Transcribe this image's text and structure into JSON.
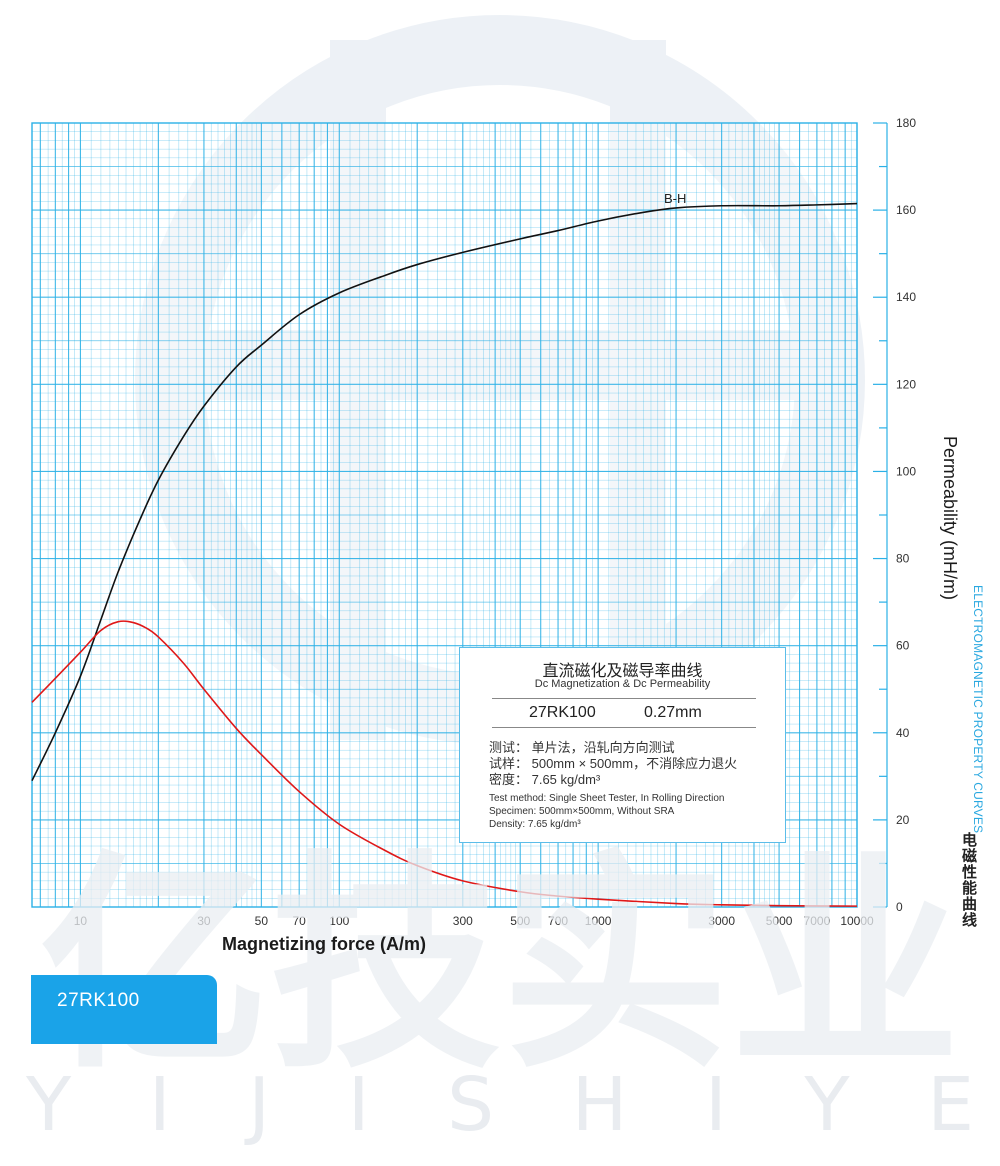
{
  "chart_data": {
    "type": "line",
    "x_scale": "log",
    "xlim": [
      6.5,
      10000
    ],
    "ylim": [
      0,
      180
    ],
    "grid": true,
    "xlabel": "Magnetizing force (A/m)",
    "ylabel": "Permeability (mH/m)",
    "x_ticks": [
      "10",
      "30",
      "50",
      "70",
      "100",
      "300",
      "500",
      "700",
      "1000",
      "3000",
      "5000",
      "7000",
      "10000"
    ],
    "y_ticks": [
      "0",
      "20",
      "40",
      "60",
      "80",
      "100",
      "120",
      "140",
      "160",
      "180"
    ],
    "series": [
      {
        "name": "B-H",
        "color": "#111111",
        "x": [
          6.5,
          8,
          10,
          12,
          14,
          17,
          20,
          25,
          30,
          40,
          50,
          70,
          100,
          150,
          200,
          300,
          500,
          700,
          1000,
          1500,
          2000,
          3000,
          5000,
          7000,
          10000
        ],
        "y": [
          29,
          40,
          53,
          66,
          77,
          89,
          98,
          108,
          115,
          124,
          129,
          136,
          141,
          145,
          147.5,
          150.3,
          153.4,
          155.3,
          157.5,
          159.5,
          160.5,
          161,
          161,
          161.2,
          161.5
        ]
      },
      {
        "name": "",
        "color": "#e01818",
        "x": [
          6.5,
          8,
          10,
          12,
          14,
          16,
          18,
          20,
          25,
          30,
          40,
          50,
          70,
          100,
          150,
          200,
          300,
          500,
          700,
          1000,
          2000,
          3000,
          5000,
          10000
        ],
        "y": [
          47,
          52.5,
          58.5,
          63.5,
          65.5,
          65.3,
          64,
          62,
          56,
          50,
          41,
          35,
          26.5,
          19,
          13,
          9.5,
          6,
          3.5,
          2.5,
          1.8,
          0.8,
          0.5,
          0.3,
          0.2
        ]
      }
    ]
  },
  "info": {
    "title_cn": "直流磁化及磁导率曲线",
    "title_en": "Dc Magnetization & Dc Permeability",
    "grade": "27RK100",
    "thickness": "0.27mm",
    "method_cn": "测试：  单片法，沿轧向方向测试",
    "specimen_cn": "试样：  500mm × 500mm，不消除应力退火",
    "density_cn": "密度：  7.65 kg/dm³",
    "method_en": "Test method: Single Sheet Tester, In Rolling Direction",
    "specimen_en": "Specimen: 500mm×500mm, Without SRA",
    "density_en": "Density: 7.65 kg/dm³"
  },
  "side_label_en": "ELECTROMAGNETIC PROPERTY CURVES",
  "side_label_cn": "电磁性能曲线",
  "badge_label": "27RK100",
  "watermark_text": "亿技实业",
  "watermark_letters": [
    "Y",
    "I",
    "J",
    "I",
    "S",
    "H",
    "I",
    "Y",
    "E"
  ],
  "colors": {
    "grid": "#2bb0e6",
    "accent": "#1aa3e8"
  }
}
